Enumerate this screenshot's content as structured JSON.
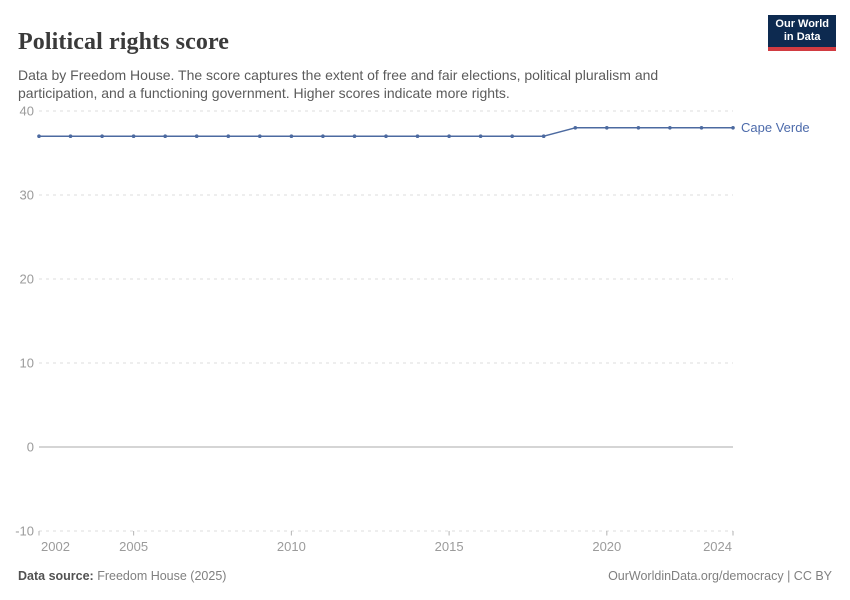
{
  "header": {
    "title": "Political rights score",
    "subtitle": "Data by Freedom House. The score captures the extent of free and fair elections, political pluralism and participation, and a functioning government. Higher scores indicate more rights.",
    "logo": {
      "line1": "Our World",
      "line2": "in Data"
    }
  },
  "footer": {
    "source_label": "Data source:",
    "source_value": " Freedom House (2025)",
    "attribution": "OurWorldinData.org/democracy | CC BY"
  },
  "colors": {
    "series": "#4c6aa0",
    "entity_label": "#4d6bab",
    "grid": "#dcdcdc",
    "zero_line": "#ababab",
    "tick": "#b3b3b3",
    "axis_text": "#9b9b9b",
    "logo_bg": "#0d2a50",
    "logo_accent": "#d13b41"
  },
  "chart_data": {
    "type": "line",
    "title": "Political rights score",
    "xlabel": "",
    "ylabel": "",
    "xlim": [
      2002,
      2024
    ],
    "ylim": [
      -10,
      40
    ],
    "x_ticks": [
      2002,
      2005,
      2010,
      2015,
      2020,
      2024
    ],
    "y_ticks": [
      -10,
      0,
      10,
      20,
      30,
      40
    ],
    "grid": "horizontal-dashed, zero line solid",
    "legend_position": "end-of-line label",
    "series": [
      {
        "name": "Cape Verde",
        "x": [
          2002,
          2003,
          2004,
          2005,
          2006,
          2007,
          2008,
          2009,
          2010,
          2011,
          2012,
          2013,
          2014,
          2015,
          2016,
          2017,
          2018,
          2019,
          2020,
          2021,
          2022,
          2023,
          2024
        ],
        "values": [
          37,
          37,
          37,
          37,
          37,
          37,
          37,
          37,
          37,
          37,
          37,
          37,
          37,
          37,
          37,
          37,
          37,
          38,
          38,
          38,
          38,
          38,
          38
        ]
      }
    ]
  }
}
